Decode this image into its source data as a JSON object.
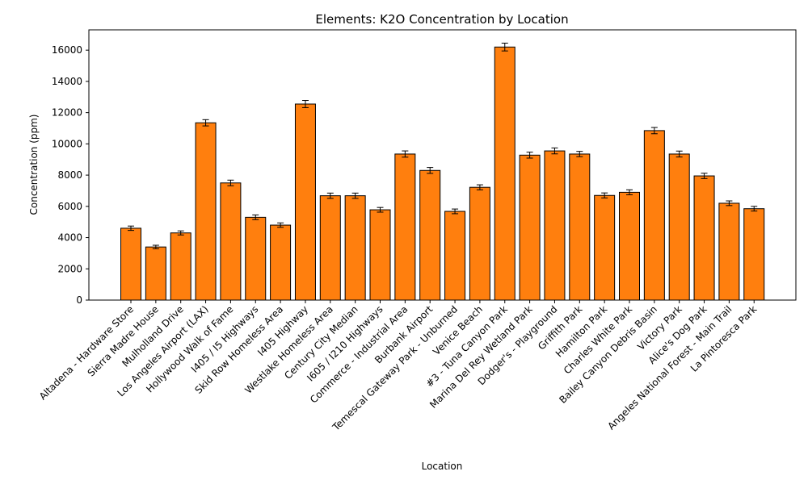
{
  "chart_data": {
    "type": "bar",
    "title": "Elements: K2O Concentration by Location",
    "xlabel": "Location",
    "ylabel": "Concentration (ppm)",
    "ylim": [
      0,
      17300
    ],
    "yticks": [
      0,
      2000,
      4000,
      6000,
      8000,
      10000,
      12000,
      14000,
      16000
    ],
    "bar_color": "#ff7f0e",
    "edge_color": "#000000",
    "grid": false,
    "categories": [
      "Altadena - Hardware Store",
      "Sierra Madre House",
      "Mulholland Drive",
      "Los Angeles Airport (LAX)",
      "Hollywood Walk of Fame",
      "I405 / I5 Highways",
      "Skid Row Homeless Area",
      "I405 Highway",
      "Westlake Homeless Area",
      "Century City Median",
      "I605 / I210 Highways",
      "Commerce - Industrial Area",
      "Burbank Airport",
      "Temescal Gateway Park - Unburned",
      "Venice Beach",
      "#3 - Tuna Canyon Park",
      "Marina Del Rey Wetland Park",
      "Dodger's - Playground",
      "Griffith Park",
      "Hamilton Park",
      "Charles White Park",
      "Bailey Canyon Debris Basin",
      "Victory Park",
      "Alice's Dog Park",
      "Angeles National Forest - Main Trail",
      "La Pintoresca Park"
    ],
    "values": [
      4600,
      3400,
      4300,
      11350,
      7500,
      5300,
      4800,
      12550,
      6680,
      6680,
      5780,
      9350,
      8300,
      5680,
      7220,
      16200,
      9280,
      9550,
      9350,
      6700,
      6900,
      10850,
      9350,
      7950,
      6200,
      5850
    ],
    "errors": [
      140,
      110,
      130,
      200,
      180,
      150,
      140,
      230,
      170,
      170,
      150,
      200,
      190,
      150,
      160,
      250,
      190,
      190,
      170,
      160,
      160,
      200,
      190,
      170,
      150,
      150
    ]
  }
}
